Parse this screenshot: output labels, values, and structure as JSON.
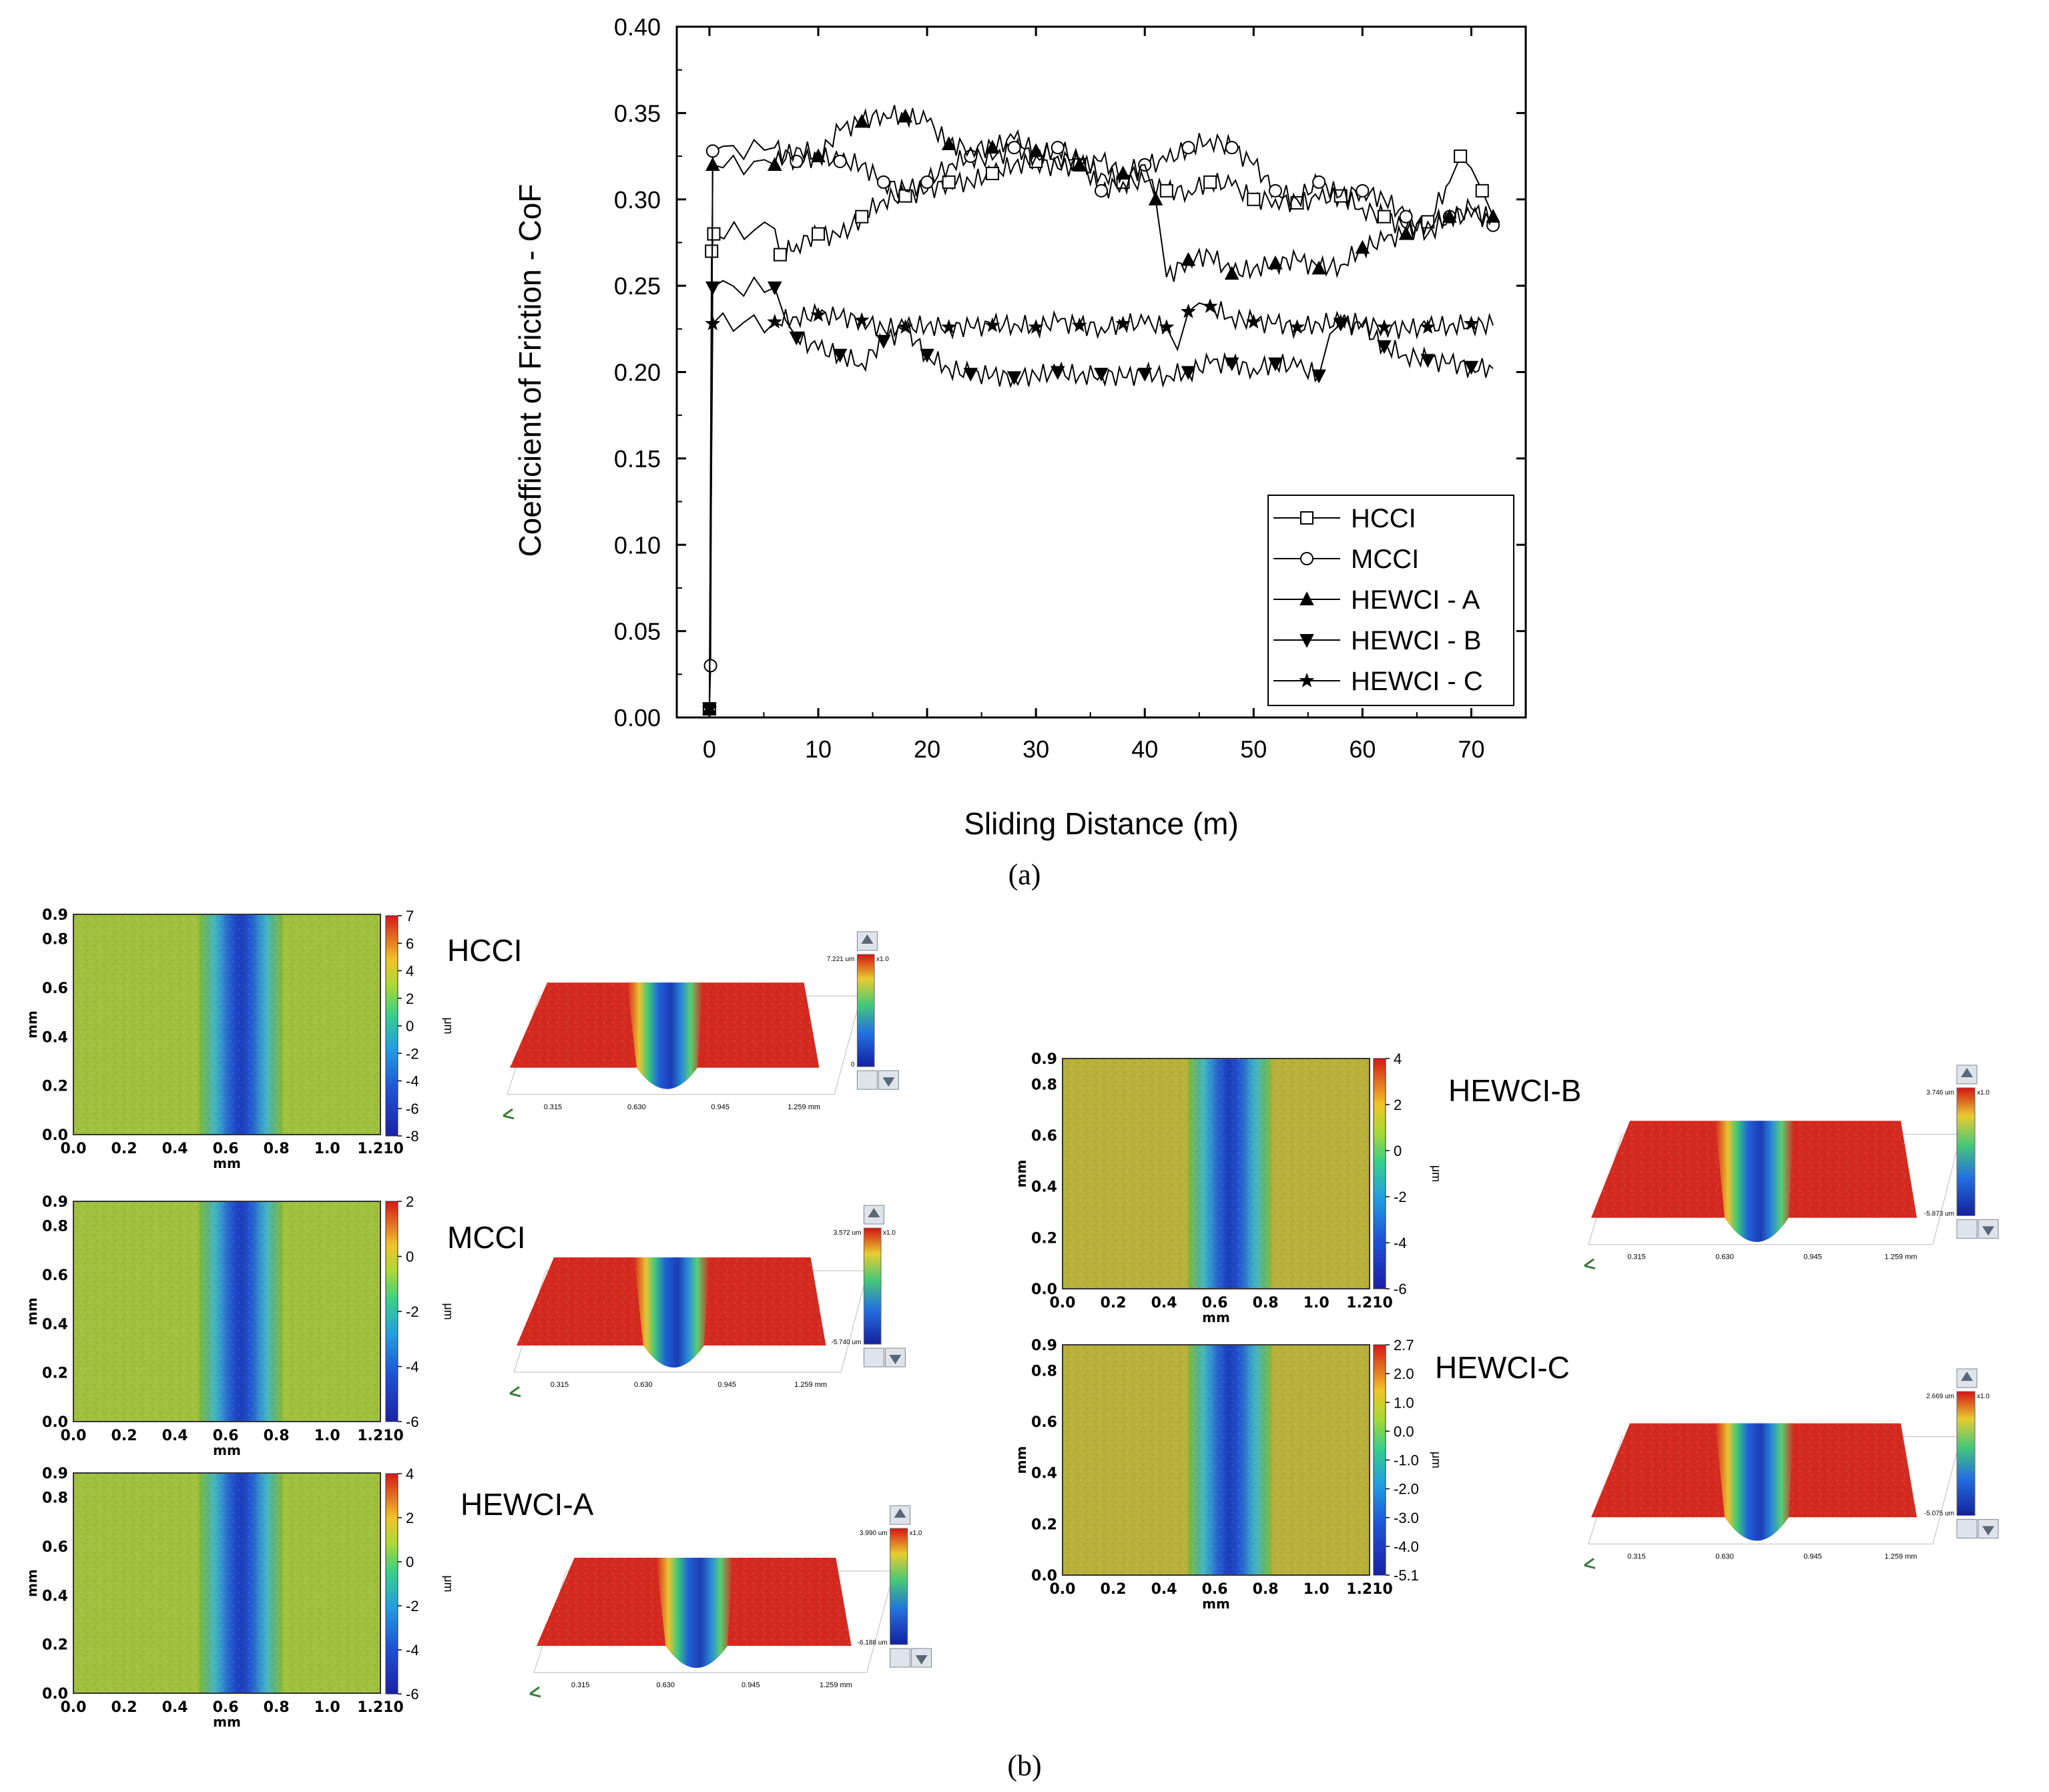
{
  "figure": {
    "panel_a_label": "(a)",
    "panel_b_label": "(b)"
  },
  "chart_data": {
    "type": "line",
    "xlabel": "Sliding Distance (m)",
    "ylabel": "Coefficient of Friction - CoF",
    "xlim": [
      -3,
      75
    ],
    "ylim": [
      0,
      0.4
    ],
    "xticks": [
      "0",
      "10",
      "20",
      "30",
      "40",
      "50",
      "60",
      "70"
    ],
    "yticks": [
      "0.00",
      "0.05",
      "0.10",
      "0.15",
      "0.20",
      "0.25",
      "0.30",
      "0.35",
      "0.40"
    ],
    "legend_position": "bottom-right",
    "series": [
      {
        "name": "HCCI",
        "marker": "open-square",
        "x": [
          0,
          0.2,
          0.4,
          6,
          6.5,
          8,
          10,
          12,
          14,
          16,
          18,
          20,
          22,
          24,
          26,
          28,
          30,
          32,
          34,
          36,
          38,
          40,
          42,
          44,
          46,
          48,
          50,
          52,
          54,
          56,
          58,
          60,
          62,
          64,
          66,
          68,
          69,
          70,
          71,
          72
        ],
        "y": [
          0.005,
          0.27,
          0.28,
          0.283,
          0.268,
          0.274,
          0.28,
          0.278,
          0.29,
          0.3,
          0.302,
          0.305,
          0.31,
          0.31,
          0.315,
          0.32,
          0.322,
          0.318,
          0.32,
          0.315,
          0.31,
          0.31,
          0.305,
          0.305,
          0.31,
          0.308,
          0.3,
          0.3,
          0.298,
          0.3,
          0.302,
          0.295,
          0.29,
          0.283,
          0.287,
          0.31,
          0.325,
          0.318,
          0.305,
          0.29
        ]
      },
      {
        "name": "MCCI",
        "marker": "open-circle",
        "x": [
          0,
          0.1,
          0.3,
          6,
          8,
          10,
          12,
          14,
          16,
          18,
          20,
          22,
          24,
          26,
          28,
          30,
          32,
          34,
          36,
          38,
          40,
          42,
          44,
          46,
          48,
          50,
          52,
          54,
          56,
          58,
          60,
          62,
          64,
          66,
          68,
          70,
          72
        ],
        "y": [
          0.005,
          0.03,
          0.328,
          0.33,
          0.322,
          0.325,
          0.322,
          0.32,
          0.31,
          0.305,
          0.31,
          0.32,
          0.325,
          0.323,
          0.33,
          0.325,
          0.33,
          0.322,
          0.305,
          0.31,
          0.32,
          0.322,
          0.33,
          0.335,
          0.33,
          0.32,
          0.305,
          0.3,
          0.31,
          0.302,
          0.305,
          0.3,
          0.29,
          0.28,
          0.29,
          0.295,
          0.285
        ]
      },
      {
        "name": "HEWCI - A",
        "marker": "filled-triangle-up",
        "x": [
          0,
          0.3,
          6,
          8,
          10,
          12,
          14,
          16,
          18,
          20,
          22,
          24,
          26,
          28,
          30,
          32,
          34,
          36,
          38,
          40,
          41,
          42,
          44,
          46,
          48,
          50,
          52,
          54,
          56,
          58,
          60,
          62,
          64,
          66,
          68,
          70,
          72
        ],
        "y": [
          0.005,
          0.32,
          0.32,
          0.33,
          0.325,
          0.34,
          0.345,
          0.35,
          0.348,
          0.345,
          0.332,
          0.33,
          0.33,
          0.335,
          0.328,
          0.325,
          0.32,
          0.322,
          0.315,
          0.32,
          0.3,
          0.255,
          0.265,
          0.268,
          0.257,
          0.26,
          0.263,
          0.265,
          0.26,
          0.262,
          0.272,
          0.276,
          0.28,
          0.287,
          0.29,
          0.29,
          0.29
        ]
      },
      {
        "name": "HEWCI - B",
        "marker": "filled-triangle-down",
        "x": [
          0,
          0.3,
          6,
          7,
          8,
          10,
          12,
          14,
          16,
          18,
          20,
          22,
          24,
          26,
          28,
          30,
          32,
          34,
          36,
          38,
          40,
          42,
          44,
          46,
          48,
          50,
          52,
          54,
          56,
          57,
          58,
          60,
          62,
          64,
          66,
          68,
          70,
          72
        ],
        "y": [
          0.005,
          0.249,
          0.249,
          0.23,
          0.22,
          0.213,
          0.21,
          0.205,
          0.218,
          0.225,
          0.21,
          0.202,
          0.199,
          0.198,
          0.197,
          0.198,
          0.2,
          0.198,
          0.199,
          0.197,
          0.199,
          0.198,
          0.2,
          0.205,
          0.205,
          0.202,
          0.205,
          0.203,
          0.198,
          0.222,
          0.228,
          0.226,
          0.215,
          0.21,
          0.207,
          0.205,
          0.203,
          0.202
        ]
      },
      {
        "name": "HEWCI - C",
        "marker": "filled-star",
        "x": [
          0,
          0.3,
          6,
          8,
          10,
          12,
          14,
          16,
          18,
          20,
          22,
          24,
          26,
          28,
          30,
          32,
          34,
          36,
          38,
          40,
          42,
          43,
          44,
          45,
          46,
          48,
          50,
          52,
          54,
          56,
          58,
          60,
          62,
          64,
          66,
          68,
          70,
          72
        ],
        "y": [
          0.005,
          0.228,
          0.229,
          0.232,
          0.233,
          0.232,
          0.23,
          0.225,
          0.226,
          0.227,
          0.226,
          0.226,
          0.227,
          0.228,
          0.226,
          0.229,
          0.227,
          0.226,
          0.228,
          0.228,
          0.226,
          0.213,
          0.235,
          0.24,
          0.238,
          0.232,
          0.229,
          0.228,
          0.226,
          0.228,
          0.229,
          0.228,
          0.226,
          0.225,
          0.226,
          0.227,
          0.228,
          0.227
        ]
      }
    ]
  },
  "wear_maps": [
    {
      "id": "hcci",
      "label": "HCCI",
      "yaxis_label": "mm",
      "xaxis_label": "mm",
      "colorbar_unit": "μm",
      "yticks": [
        "0.9",
        "0.8",
        "0.6",
        "0.4",
        "0.2",
        "0.0"
      ],
      "xticks": [
        "0.0",
        "0.2",
        "0.4",
        "0.6",
        "0.8",
        "1.0",
        "1.210"
      ],
      "colorbar_ticks": [
        "7",
        "6",
        "4",
        "2",
        "0",
        "-2",
        "-4",
        "-6",
        "-8"
      ],
      "view3d_top": "7.221 um",
      "view3d_bottom": "0",
      "view3d_xticks": [
        "0.315",
        "0.630",
        "0.945",
        "1.259 mm"
      ],
      "view3d_scale": "x1.0"
    },
    {
      "id": "mcci",
      "label": "MCCI",
      "yaxis_label": "mm",
      "xaxis_label": "mm",
      "colorbar_unit": "μm",
      "yticks": [
        "0.9",
        "0.8",
        "0.6",
        "0.4",
        "0.2",
        "0.0"
      ],
      "xticks": [
        "0.0",
        "0.2",
        "0.4",
        "0.6",
        "0.8",
        "1.0",
        "1.210"
      ],
      "colorbar_ticks": [
        "2",
        "0",
        "-2",
        "-4",
        "-6"
      ],
      "view3d_top": "3.572 um",
      "view3d_bottom": "-5.740 um",
      "view3d_xticks": [
        "0.315",
        "0.630",
        "0.945",
        "1.259 mm"
      ],
      "view3d_scale": "x1.0"
    },
    {
      "id": "hewci-a",
      "label": "HEWCI-A",
      "yaxis_label": "mm",
      "xaxis_label": "mm",
      "colorbar_unit": "μm",
      "yticks": [
        "0.9",
        "0.8",
        "0.6",
        "0.4",
        "0.2",
        "0.0"
      ],
      "xticks": [
        "0.0",
        "0.2",
        "0.4",
        "0.6",
        "0.8",
        "1.0",
        "1.210"
      ],
      "colorbar_ticks": [
        "4",
        "2",
        "0",
        "-2",
        "-4",
        "-6"
      ],
      "view3d_top": "3.990 um",
      "view3d_bottom": "-6.188 um",
      "view3d_xticks": [
        "0.315",
        "0.630",
        "0.945",
        "1.259 mm"
      ],
      "view3d_scale": "x1.0"
    },
    {
      "id": "hewci-b",
      "label": "HEWCI-B",
      "yaxis_label": "mm",
      "xaxis_label": "mm",
      "colorbar_unit": "μm",
      "yticks": [
        "0.9",
        "0.8",
        "0.6",
        "0.4",
        "0.2",
        "0.0"
      ],
      "xticks": [
        "0.0",
        "0.2",
        "0.4",
        "0.6",
        "0.8",
        "1.0",
        "1.210"
      ],
      "colorbar_ticks": [
        "4",
        "2",
        "0",
        "-2",
        "-4",
        "-6"
      ],
      "view3d_top": "3.746 um",
      "view3d_bottom": "-5.873 um",
      "view3d_xticks": [
        "0.315",
        "0.630",
        "0.945",
        "1.259 mm"
      ],
      "view3d_scale": "x1.0"
    },
    {
      "id": "hewci-c",
      "label": "HEWCI-C",
      "yaxis_label": "mm",
      "xaxis_label": "mm",
      "colorbar_unit": "μm",
      "yticks": [
        "0.9",
        "0.8",
        "0.6",
        "0.4",
        "0.2",
        "0.0"
      ],
      "xticks": [
        "0.0",
        "0.2",
        "0.4",
        "0.6",
        "0.8",
        "1.0",
        "1.210"
      ],
      "colorbar_ticks": [
        "2.7",
        "2.0",
        "1.0",
        "0.0",
        "-1.0",
        "-2.0",
        "-3.0",
        "-4.0",
        "-5.1"
      ],
      "view3d_top": "2.669 um",
      "view3d_bottom": "-5.075 um",
      "view3d_xticks": [
        "0.315",
        "0.630",
        "0.945",
        "1.259 mm"
      ],
      "view3d_scale": "x1.0"
    }
  ]
}
